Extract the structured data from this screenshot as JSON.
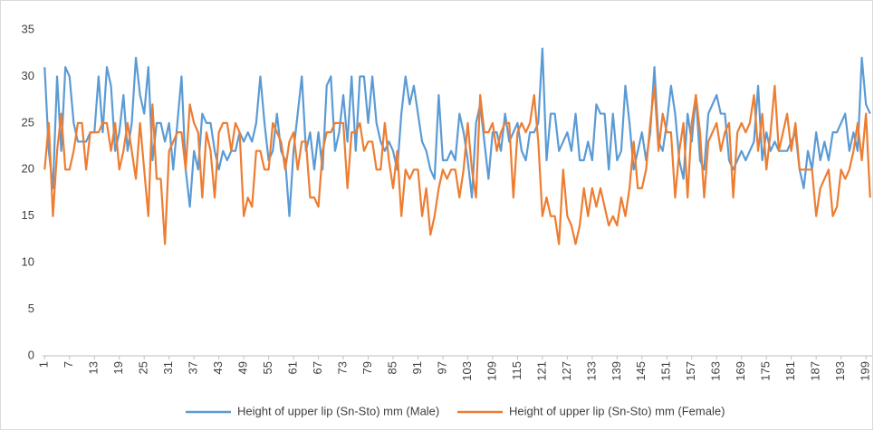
{
  "chart_data": {
    "type": "line",
    "categories": [
      1,
      null,
      null,
      null,
      null,
      null,
      7,
      null,
      null,
      null,
      null,
      null,
      13,
      null,
      null,
      null,
      null,
      null,
      19,
      null,
      null,
      null,
      null,
      null,
      25,
      null,
      null,
      null,
      null,
      null,
      31,
      null,
      null,
      null,
      null,
      null,
      37,
      null,
      null,
      null,
      null,
      null,
      43,
      null,
      null,
      null,
      null,
      null,
      49,
      null,
      null,
      null,
      null,
      null,
      55,
      null,
      null,
      null,
      null,
      null,
      61,
      null,
      null,
      null,
      null,
      null,
      67,
      null,
      null,
      null,
      null,
      null,
      73,
      null,
      null,
      null,
      null,
      null,
      79,
      null,
      null,
      null,
      null,
      null,
      85,
      null,
      null,
      null,
      null,
      null,
      91,
      null,
      null,
      null,
      null,
      null,
      97,
      null,
      null,
      null,
      null,
      null,
      103,
      null,
      null,
      null,
      null,
      null,
      109,
      null,
      null,
      null,
      null,
      null,
      115,
      null,
      null,
      null,
      null,
      null,
      121,
      null,
      null,
      null,
      null,
      null,
      127,
      null,
      null,
      null,
      null,
      null,
      133,
      null,
      null,
      null,
      null,
      null,
      139,
      null,
      null,
      null,
      null,
      null,
      145,
      null,
      null,
      null,
      null,
      null,
      151,
      null,
      null,
      null,
      null,
      null,
      157,
      null,
      null,
      null,
      null,
      null,
      163,
      null,
      null,
      null,
      null,
      null,
      169,
      null,
      null,
      null,
      null,
      null,
      175,
      null,
      null,
      null,
      null,
      null,
      181,
      null,
      null,
      null,
      null,
      null,
      187,
      null,
      null,
      null,
      null,
      null,
      193,
      null,
      null,
      null,
      null,
      null,
      199,
      null
    ],
    "series": [
      {
        "name": "Height of upper lip (Sn-Sto) mm (Male)",
        "color": "#5b9bd5",
        "values": [
          31,
          22,
          18,
          30,
          22,
          31,
          30,
          25,
          23,
          23,
          23,
          24,
          24,
          30,
          24,
          31,
          29,
          22,
          24,
          28,
          22,
          25,
          32,
          28,
          26,
          31,
          21,
          25,
          25,
          23,
          25,
          20,
          25,
          30,
          20,
          16,
          22,
          20,
          26,
          25,
          25,
          22,
          20,
          22,
          21,
          22,
          22,
          24,
          23,
          24,
          23,
          25,
          30,
          25,
          21,
          22,
          26,
          22,
          21,
          15,
          22,
          26,
          30,
          22,
          24,
          20,
          24,
          20,
          29,
          30,
          22,
          24,
          28,
          23,
          30,
          22,
          30,
          30,
          25,
          30,
          25,
          23,
          22,
          23,
          22,
          20,
          26,
          30,
          27,
          29,
          26,
          23,
          22,
          20,
          19,
          28,
          21,
          21,
          22,
          21,
          26,
          24,
          21,
          17,
          25,
          27,
          23,
          19,
          24,
          24,
          22,
          26,
          23,
          24,
          25,
          22,
          21,
          24,
          24,
          25,
          33,
          21,
          26,
          26,
          22,
          23,
          24,
          22,
          26,
          21,
          21,
          23,
          21,
          27,
          26,
          26,
          20,
          26,
          21,
          22,
          29,
          25,
          20,
          22,
          24,
          21,
          24,
          31,
          23,
          22,
          25,
          29,
          26,
          21,
          19,
          26,
          23,
          28,
          21,
          20,
          26,
          27,
          28,
          26,
          26,
          21,
          20,
          21,
          22,
          21,
          22,
          23,
          29,
          21,
          24,
          22,
          23,
          22,
          22,
          22,
          23,
          24,
          20,
          18,
          22,
          20,
          24,
          21,
          23,
          21,
          24,
          24,
          25,
          26,
          22,
          24,
          22,
          32,
          27,
          26
        ]
      },
      {
        "name": "Height of upper lip (Sn-Sto) mm (Female)",
        "color": "#ed7d31",
        "values": [
          20,
          25,
          15,
          22,
          26,
          20,
          20,
          22,
          25,
          25,
          20,
          24,
          24,
          24,
          25,
          25,
          22,
          25,
          20,
          22,
          25,
          22,
          19,
          25,
          20,
          15,
          27,
          19,
          19,
          12,
          22,
          23,
          24,
          24,
          20,
          27,
          25,
          24,
          17,
          24,
          22,
          17,
          24,
          25,
          25,
          22,
          25,
          24,
          15,
          17,
          16,
          22,
          22,
          20,
          20,
          25,
          24,
          23,
          20,
          23,
          24,
          20,
          23,
          23,
          17,
          17,
          16,
          22,
          24,
          24,
          25,
          25,
          25,
          18,
          24,
          24,
          25,
          22,
          23,
          23,
          20,
          20,
          25,
          21,
          18,
          22,
          15,
          20,
          19,
          20,
          20,
          15,
          18,
          13,
          15,
          18,
          20,
          19,
          20,
          20,
          17,
          20,
          25,
          20,
          17,
          28,
          24,
          24,
          25,
          22,
          24,
          25,
          25,
          17,
          24,
          25,
          24,
          25,
          28,
          23,
          15,
          17,
          15,
          15,
          12,
          20,
          15,
          14,
          12,
          14,
          18,
          15,
          18,
          16,
          18,
          16,
          14,
          15,
          14,
          17,
          15,
          18,
          23,
          18,
          18,
          20,
          25,
          29,
          22,
          26,
          24,
          24,
          17,
          22,
          25,
          17,
          25,
          28,
          24,
          17,
          23,
          24,
          25,
          22,
          24,
          25,
          17,
          24,
          25,
          24,
          25,
          28,
          22,
          26,
          20,
          24,
          29,
          22,
          24,
          26,
          22,
          25,
          20,
          20,
          20,
          20,
          15,
          18,
          19,
          20,
          15,
          16,
          20,
          19,
          20,
          22,
          25,
          21,
          26,
          17
        ]
      }
    ],
    "ylim": [
      0,
      35
    ],
    "yticks": [
      0,
      5,
      10,
      15,
      20,
      25,
      30,
      35
    ],
    "grid": false,
    "legend": "bottom"
  }
}
